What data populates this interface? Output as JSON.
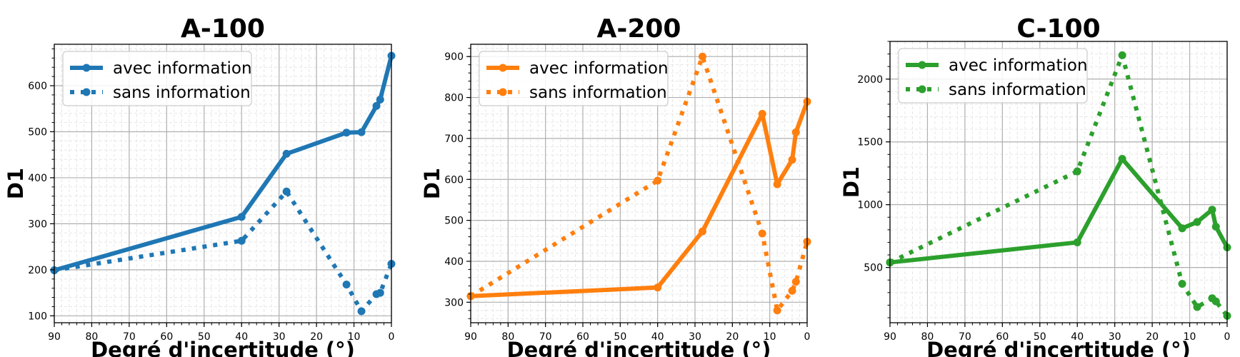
{
  "chart_data": [
    {
      "type": "line",
      "title": "A-100",
      "xlabel": "Degré d'incertitude (°)",
      "ylabel": "D1",
      "xlim": [
        90,
        0
      ],
      "ylim": [
        85,
        690
      ],
      "x_ticks": [
        90,
        80,
        70,
        60,
        50,
        40,
        30,
        20,
        10,
        0
      ],
      "y_ticks": [
        100,
        200,
        300,
        400,
        500,
        600
      ],
      "grid": true,
      "legend": "top-left",
      "color": "#1f77b4",
      "series": [
        {
          "name": "avec information",
          "style": "solid",
          "x": [
            90,
            40,
            28,
            12,
            8,
            4,
            3,
            0
          ],
          "y": [
            199,
            315,
            452,
            498,
            499,
            556,
            570,
            665
          ]
        },
        {
          "name": "sans information",
          "style": "dotted",
          "x": [
            90,
            40,
            28,
            12,
            8,
            4,
            3,
            0
          ],
          "y": [
            199,
            263,
            370,
            168,
            110,
            147,
            150,
            213
          ]
        }
      ]
    },
    {
      "type": "line",
      "title": "A-200",
      "xlabel": "Degré d'incertitude (°)",
      "ylabel": "D1",
      "xlim": [
        90,
        0
      ],
      "ylim": [
        250,
        930
      ],
      "x_ticks": [
        90,
        80,
        70,
        60,
        50,
        40,
        30,
        20,
        10,
        0
      ],
      "y_ticks": [
        300,
        400,
        500,
        600,
        700,
        800,
        900
      ],
      "grid": true,
      "legend": "top-left",
      "color": "#ff7f0e",
      "series": [
        {
          "name": "avec information",
          "style": "solid",
          "x": [
            90,
            40,
            28,
            12,
            8,
            4,
            3,
            0
          ],
          "y": [
            315,
            336,
            473,
            760,
            588,
            648,
            715,
            790
          ]
        },
        {
          "name": "sans information",
          "style": "dotted",
          "x": [
            90,
            40,
            28,
            12,
            8,
            4,
            3,
            0
          ],
          "y": [
            315,
            597,
            900,
            468,
            280,
            328,
            350,
            448
          ]
        }
      ]
    },
    {
      "type": "line",
      "title": "C-100",
      "xlabel": "Degré d'incertitude (°)",
      "ylabel": "D1",
      "xlim": [
        90,
        0
      ],
      "ylim": [
        60,
        2300
      ],
      "x_ticks": [
        90,
        80,
        70,
        60,
        50,
        40,
        30,
        20,
        10,
        0
      ],
      "y_ticks": [
        500,
        1000,
        1500,
        2000
      ],
      "grid": true,
      "legend": "top-left",
      "color": "#2ca02c",
      "series": [
        {
          "name": "avec information",
          "style": "solid",
          "x": [
            90,
            40,
            28,
            12,
            8,
            4,
            3,
            0
          ],
          "y": [
            540,
            700,
            1365,
            812,
            862,
            960,
            825,
            660
          ]
        },
        {
          "name": "sans information",
          "style": "dotted",
          "x": [
            90,
            40,
            28,
            12,
            8,
            4,
            3,
            0
          ],
          "y": [
            540,
            1265,
            2190,
            370,
            185,
            255,
            230,
            115
          ]
        }
      ]
    }
  ]
}
